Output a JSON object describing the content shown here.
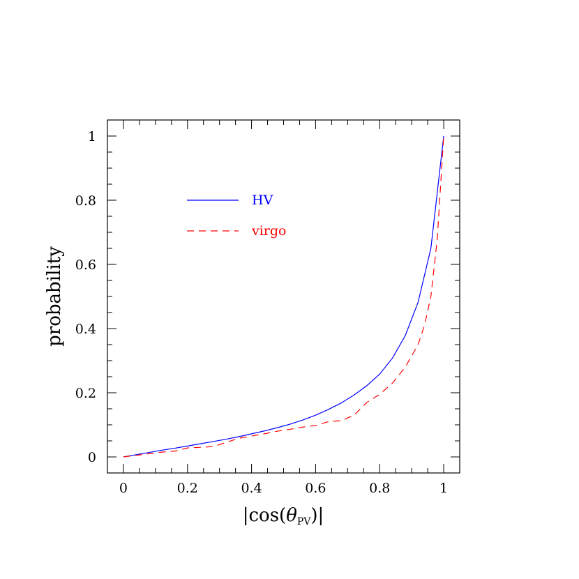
{
  "chart_data": {
    "type": "line",
    "xlabel": "|cos(θ_PV)|",
    "xlabel_parts": {
      "open": "|cos(",
      "theta": "θ",
      "sub": "PV",
      "close": ")|"
    },
    "ylabel": "probability",
    "xlim": [
      -0.05,
      1.05
    ],
    "ylim": [
      -0.05,
      1.05
    ],
    "x_ticks": [
      0,
      0.2,
      0.4,
      0.6,
      0.8,
      1
    ],
    "x_tick_labels": [
      "0",
      "0.2",
      "0.4",
      "0.6",
      "0.8",
      "1"
    ],
    "y_ticks": [
      0,
      0.2,
      0.4,
      0.6,
      0.8,
      1
    ],
    "y_tick_labels": [
      "0",
      "0.2",
      "0.4",
      "0.6",
      "0.8",
      "1"
    ],
    "minor_step": 0.05,
    "grid": false,
    "legend_position": "upper-left",
    "series": [
      {
        "name": "HV",
        "color": "#0000ff",
        "style": "solid",
        "x": [
          0,
          0.04,
          0.08,
          0.12,
          0.16,
          0.2,
          0.24,
          0.28,
          0.32,
          0.36,
          0.4,
          0.44,
          0.48,
          0.52,
          0.56,
          0.6,
          0.64,
          0.68,
          0.72,
          0.76,
          0.8,
          0.84,
          0.88,
          0.92,
          0.96,
          1.0
        ],
        "y": [
          0,
          0.007,
          0.014,
          0.021,
          0.027,
          0.034,
          0.041,
          0.048,
          0.055,
          0.063,
          0.072,
          0.081,
          0.091,
          0.102,
          0.115,
          0.13,
          0.148,
          0.168,
          0.193,
          0.222,
          0.258,
          0.308,
          0.378,
          0.482,
          0.65,
          1.0
        ]
      },
      {
        "name": "virgo",
        "color": "#ff0000",
        "style": "dashed",
        "x": [
          0,
          0.04,
          0.08,
          0.12,
          0.16,
          0.2,
          0.24,
          0.28,
          0.32,
          0.36,
          0.4,
          0.44,
          0.48,
          0.52,
          0.56,
          0.6,
          0.64,
          0.68,
          0.72,
          0.76,
          0.8,
          0.84,
          0.88,
          0.92,
          0.94,
          0.96,
          0.98,
          1.0
        ],
        "y": [
          0,
          0.005,
          0.01,
          0.015,
          0.018,
          0.028,
          0.03,
          0.032,
          0.045,
          0.058,
          0.065,
          0.072,
          0.08,
          0.086,
          0.093,
          0.098,
          0.11,
          0.113,
          0.13,
          0.17,
          0.195,
          0.23,
          0.28,
          0.35,
          0.41,
          0.5,
          0.68,
          1.0
        ]
      }
    ]
  }
}
